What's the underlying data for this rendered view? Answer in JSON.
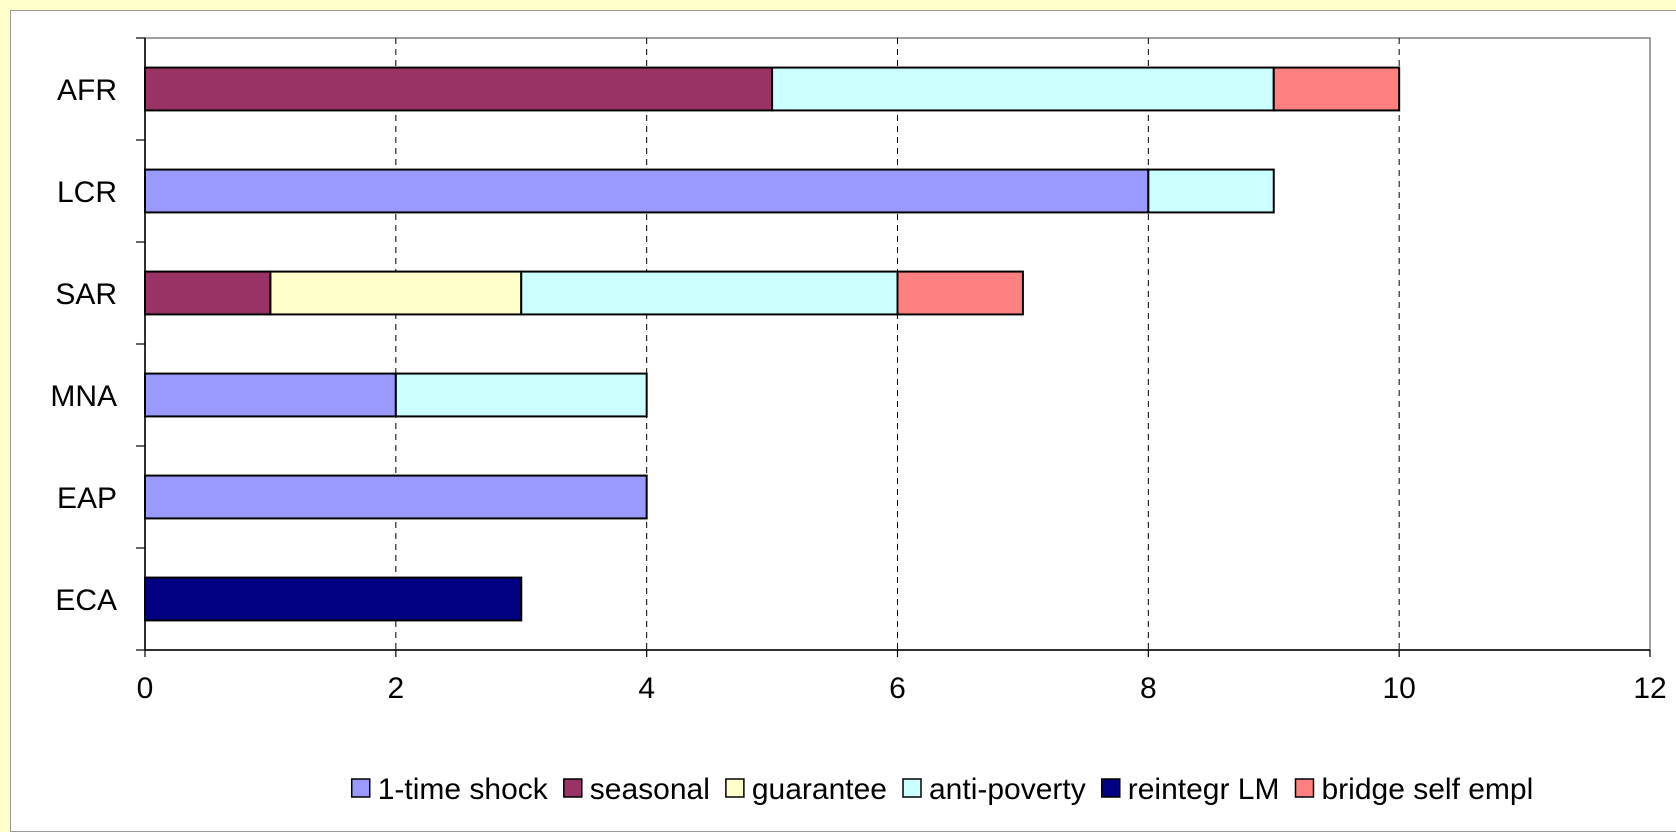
{
  "chart_data": {
    "type": "bar",
    "orientation": "horizontal",
    "stacked": true,
    "categories": [
      "AFR",
      "LCR",
      "SAR",
      "MNA",
      "EAP",
      "ECA"
    ],
    "series": [
      {
        "name": "1-time shock",
        "color": "#9999ff",
        "values": [
          0,
          8,
          0,
          2,
          4,
          0
        ]
      },
      {
        "name": "seasonal",
        "color": "#993366",
        "values": [
          5,
          0,
          1,
          0,
          0,
          0
        ]
      },
      {
        "name": "guarantee",
        "color": "#ffffcc",
        "values": [
          0,
          0,
          2,
          0,
          0,
          0
        ]
      },
      {
        "name": "anti-poverty",
        "color": "#ccffff",
        "values": [
          4,
          1,
          3,
          2,
          0,
          0
        ]
      },
      {
        "name": "reintegr LM",
        "color": "#000080",
        "values": [
          0,
          0,
          0,
          0,
          0,
          3
        ]
      },
      {
        "name": "bridge self empl",
        "color": "#ff8080",
        "values": [
          1,
          0,
          1,
          0,
          0,
          0
        ]
      }
    ],
    "xlim": [
      0,
      12
    ],
    "xticks": [
      "0",
      "2",
      "4",
      "6",
      "8",
      "10",
      "12"
    ],
    "xgrid": true,
    "grid_style": "dashed",
    "legend_position": "bottom"
  }
}
